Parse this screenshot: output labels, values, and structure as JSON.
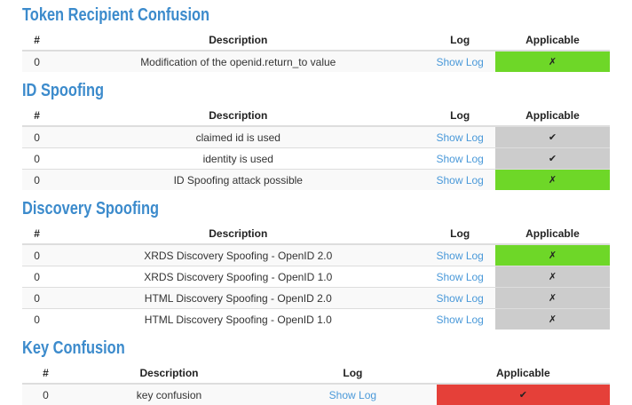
{
  "colors": {
    "heading_blue": "#3c8bcc",
    "link_blue": "#4a99d9",
    "status_green": "#6ed728",
    "status_gray": "#cccccc",
    "status_red": "#e54039"
  },
  "table_headers": {
    "num": "#",
    "description": "Description",
    "log": "Log",
    "applicable": "Applicable"
  },
  "sections": [
    {
      "title": "Token Recipient Confusion",
      "rows": [
        {
          "num": "0",
          "description": "Modification of the openid.return_to value",
          "log_link": "Show Log",
          "applicable_mark": "✗",
          "applicable_status": "green"
        }
      ]
    },
    {
      "title": "ID Spoofing",
      "rows": [
        {
          "num": "0",
          "description": "claimed id is used",
          "log_link": "Show Log",
          "applicable_mark": "✔",
          "applicable_status": "gray"
        },
        {
          "num": "0",
          "description": "identity is used",
          "log_link": "Show Log",
          "applicable_mark": "✔",
          "applicable_status": "gray"
        },
        {
          "num": "0",
          "description": "ID Spoofing attack possible",
          "log_link": "Show Log",
          "applicable_mark": "✗",
          "applicable_status": "green"
        }
      ]
    },
    {
      "title": "Discovery Spoofing",
      "rows": [
        {
          "num": "0",
          "description": "XRDS Discovery Spoofing - OpenID 2.0",
          "log_link": "Show Log",
          "applicable_mark": "✗",
          "applicable_status": "green"
        },
        {
          "num": "0",
          "description": "XRDS Discovery Spoofing - OpenID 1.0",
          "log_link": "Show Log",
          "applicable_mark": "✗",
          "applicable_status": "gray"
        },
        {
          "num": "0",
          "description": "HTML Discovery Spoofing - OpenID 2.0",
          "log_link": "Show Log",
          "applicable_mark": "✗",
          "applicable_status": "gray"
        },
        {
          "num": "0",
          "description": "HTML Discovery Spoofing - OpenID 1.0",
          "log_link": "Show Log",
          "applicable_mark": "✗",
          "applicable_status": "gray"
        }
      ]
    },
    {
      "title": "Key Confusion",
      "rows": [
        {
          "num": "0",
          "description": "key confusion",
          "log_link": "Show Log",
          "applicable_mark": "✔",
          "applicable_status": "red"
        }
      ]
    }
  ]
}
